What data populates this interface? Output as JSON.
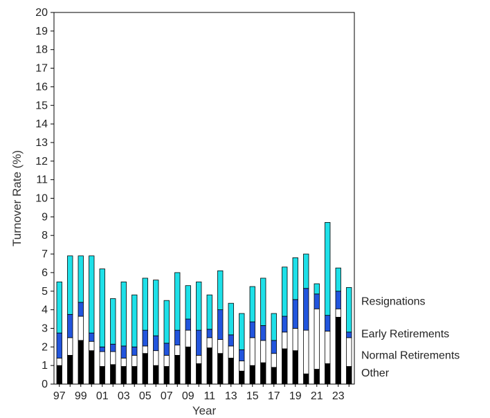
{
  "chart_data": {
    "type": "bar",
    "stacked": true,
    "xlabel": "Year",
    "ylabel": "Turnover Rate (%)",
    "ylim": [
      0,
      20
    ],
    "yticks": [
      0,
      1,
      2,
      3,
      4,
      5,
      6,
      7,
      8,
      9,
      10,
      11,
      12,
      13,
      14,
      15,
      16,
      17,
      18,
      19,
      20
    ],
    "categories": [
      "97",
      "98",
      "99",
      "00",
      "01",
      "02",
      "03",
      "04",
      "05",
      "06",
      "07",
      "08",
      "09",
      "10",
      "11",
      "12",
      "13",
      "14",
      "15",
      "16",
      "17",
      "18",
      "19",
      "20",
      "21",
      "22",
      "23",
      "24"
    ],
    "xtick_labels": [
      "97",
      "99",
      "01",
      "03",
      "05",
      "07",
      "09",
      "11",
      "13",
      "15",
      "17",
      "19",
      "21",
      "23"
    ],
    "grid": false,
    "legend_position": "right, stacked labels beside the last bar",
    "series": [
      {
        "name": "Other",
        "color": "#000000",
        "values": [
          1.0,
          1.55,
          2.35,
          1.8,
          0.95,
          1.05,
          0.95,
          0.95,
          1.65,
          1.0,
          0.95,
          1.55,
          2.0,
          1.1,
          1.95,
          1.65,
          1.4,
          0.7,
          1.0,
          1.15,
          0.9,
          1.9,
          1.8,
          0.55,
          0.8,
          1.1,
          3.6,
          0.95
        ]
      },
      {
        "name": "Normal Retirements",
        "color": "#ffffff",
        "values": [
          0.4,
          0.95,
          1.3,
          0.5,
          0.8,
          0.7,
          0.45,
          0.6,
          0.4,
          0.8,
          0.6,
          0.55,
          0.9,
          0.45,
          0.55,
          0.75,
          0.65,
          0.55,
          1.5,
          1.2,
          0.75,
          0.9,
          1.2,
          2.35,
          3.25,
          1.75,
          0.45,
          1.55
        ]
      },
      {
        "name": "Early Retirements",
        "color": "#2255dd",
        "values": [
          1.35,
          1.25,
          0.75,
          0.45,
          0.25,
          0.4,
          0.65,
          0.45,
          0.85,
          0.8,
          0.65,
          0.8,
          0.6,
          1.35,
          0.45,
          1.6,
          0.6,
          0.6,
          0.85,
          0.8,
          0.7,
          0.85,
          1.55,
          2.25,
          0.8,
          0.85,
          0.95,
          0.3
        ]
      },
      {
        "name": "Resignations",
        "color": "#1ee0e8",
        "values": [
          2.75,
          3.15,
          2.5,
          4.15,
          4.2,
          2.45,
          3.45,
          2.8,
          2.8,
          3.0,
          2.3,
          3.1,
          1.8,
          2.6,
          1.85,
          2.1,
          1.7,
          1.95,
          1.9,
          2.55,
          1.45,
          2.65,
          2.25,
          1.85,
          0.55,
          5.0,
          1.25,
          2.4
        ]
      }
    ]
  }
}
